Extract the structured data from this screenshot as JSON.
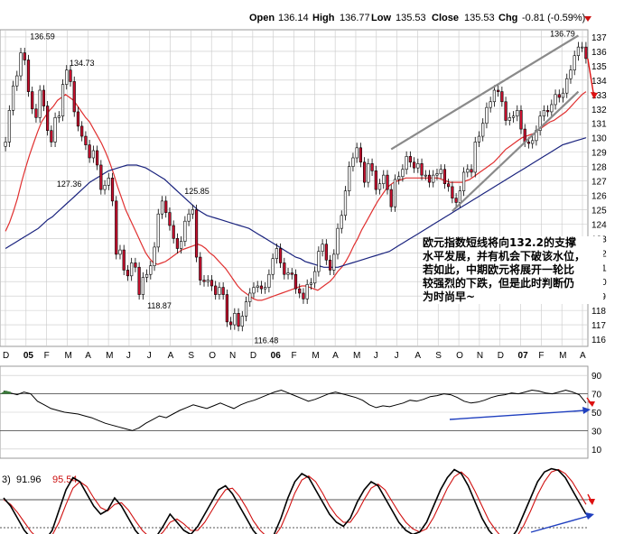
{
  "header": {
    "open_label": "Open",
    "open": "136.14",
    "high_label": "High",
    "high": "136.77",
    "low_label": "Low",
    "low": "135.53",
    "close_label": "Close",
    "close": "135.53",
    "chg_label": "Chg",
    "chg": "-0.81 (-0.59%)"
  },
  "annotation": "欧元指数短线将向132.2的支撑\n水平发展，并有机会下破该水位，\n若如此，中期欧元将展开一轮比\n较强烈的下跌，但是此时判断仍\n为时尚早~",
  "osc_legend": {
    "prefix": "3)",
    "k": "91.96",
    "d": "95.54"
  },
  "colors": {
    "up_candle": "#ffffff",
    "down_candle": "#c8102e",
    "sma_short": "#e03030",
    "sma_long": "#1a237e",
    "trendline": "#8a8a8a",
    "arrow": "#1f3fbf",
    "red_arrow": "#dd1111",
    "grid": "#c8c8c8"
  },
  "chart_data": [
    {
      "type": "candlestick",
      "title": "",
      "x_labels": [
        "D",
        "05",
        "F",
        "M",
        "A",
        "M",
        "J",
        "J",
        "A",
        "S",
        "O",
        "N",
        "D",
        "06",
        "F",
        "M",
        "A",
        "M",
        "J",
        "J",
        "A",
        "S",
        "O",
        "N",
        "D",
        "07",
        "F",
        "M",
        "A"
      ],
      "y_ticks": [
        116,
        117,
        118,
        119,
        120,
        121,
        122,
        123,
        124,
        125,
        126,
        127,
        128,
        129,
        130,
        131,
        132,
        133,
        134,
        135,
        136,
        137
      ],
      "ylim": [
        115.5,
        137.5
      ],
      "price_labels": [
        "136.59",
        "134.73",
        "127.36",
        "125.85",
        "118.87",
        "116.48",
        "136.79"
      ],
      "price_label_values": [
        136.59,
        134.73,
        127.36,
        125.85,
        118.87,
        116.48,
        136.79
      ],
      "price_label_dates": [
        3.2,
        6.6,
        5.5,
        16.5,
        13.3,
        22.5,
        48.0
      ],
      "close": [
        129.7,
        131.9,
        133.6,
        134.3,
        135.9,
        135.4,
        133.2,
        132.0,
        131.4,
        133.3,
        132.2,
        130.5,
        129.7,
        131.4,
        131.5,
        133.7,
        134.7,
        133.9,
        131.8,
        130.8,
        130.1,
        129.5,
        128.6,
        129.1,
        128.1,
        126.4,
        126.7,
        127.2,
        125.6,
        121.9,
        122.2,
        120.8,
        120.4,
        121.3,
        121.0,
        119.1,
        120.3,
        120.5,
        121.1,
        122.4,
        124.7,
        125.6,
        124.8,
        123.9,
        123.0,
        122.3,
        122.8,
        124.2,
        124.7,
        125.0,
        121.7,
        120.1,
        120.0,
        120.1,
        119.7,
        119.1,
        119.6,
        119.1,
        117.2,
        117.0,
        117.8,
        116.9,
        117.6,
        118.6,
        119.2,
        119.6,
        119.7,
        119.5,
        119.6,
        120.5,
        121.6,
        122.3,
        121.3,
        120.5,
        120.6,
        120.5,
        119.5,
        119.2,
        118.8,
        119.8,
        119.9,
        120.7,
        122.1,
        122.6,
        121.5,
        120.8,
        121.9,
        123.7,
        124.6,
        126.3,
        128.0,
        128.6,
        129.3,
        128.3,
        126.9,
        128.2,
        127.7,
        126.4,
        126.8,
        127.4,
        126.4,
        125.2,
        127.1,
        127.3,
        127.8,
        128.7,
        128.3,
        127.9,
        128.2,
        127.4,
        127.4,
        126.9,
        127.4,
        127.5,
        127.8,
        126.8,
        126.6,
        125.8,
        125.5,
        126.3,
        127.6,
        127.8,
        127.6,
        129.7,
        130.1,
        131.0,
        132.1,
        132.5,
        133.3,
        133.2,
        132.5,
        131.2,
        131.4,
        131.5,
        131.9,
        130.6,
        129.7,
        129.6,
        129.8,
        130.5,
        131.5,
        131.9,
        131.8,
        132.3,
        133.0,
        132.8,
        133.1,
        134.1,
        134.7,
        135.7,
        136.3,
        136.3,
        135.5
      ],
      "series": [
        {
          "name": "",
          "role": "sma_short",
          "values": [
            123.5,
            124.1,
            124.9,
            125.8,
            126.9,
            127.9,
            128.8,
            129.6,
            130.4,
            131.1,
            131.5,
            131.9,
            132.2,
            132.6,
            132.8,
            133.0,
            132.8,
            132.6,
            132.2,
            131.8,
            131.4,
            131.1,
            130.6,
            130.1,
            129.6,
            129.0,
            128.3,
            127.5,
            126.6,
            125.8,
            125.0,
            124.4,
            123.8,
            123.2,
            122.6,
            122.0,
            121.6,
            121.3,
            121.2,
            121.3,
            121.4,
            121.6,
            121.8,
            122.0,
            122.2,
            122.3,
            122.4,
            122.5,
            122.6,
            122.5,
            122.3,
            122.0,
            121.8,
            121.5,
            121.2,
            120.9,
            120.5,
            120.1,
            119.7,
            119.4,
            119.2,
            119.0,
            118.8,
            118.7,
            118.7,
            118.8,
            118.9,
            119.0,
            119.1,
            119.2,
            119.3,
            119.4,
            119.5,
            119.6,
            119.7,
            119.7,
            119.6,
            119.5,
            119.4,
            119.6,
            119.8,
            120.0,
            120.3,
            120.7,
            121.0,
            121.4,
            121.9,
            122.5,
            123.0,
            123.6,
            124.1,
            124.6,
            125.1,
            125.6,
            126.0,
            126.4,
            126.7,
            126.9,
            127.0,
            127.1,
            127.2,
            127.2,
            127.2,
            127.2,
            127.2,
            127.2,
            127.2,
            127.2,
            127.2,
            127.1,
            127.0,
            126.9,
            126.9,
            126.9,
            126.9,
            127.0,
            127.1,
            127.3,
            127.5,
            127.7,
            127.9,
            128.1,
            128.3,
            128.6,
            128.9,
            129.2,
            129.4,
            129.6,
            129.8,
            130.0,
            130.1,
            130.2,
            130.3,
            130.5,
            130.7,
            130.9,
            131.1,
            131.2,
            131.4,
            131.6,
            131.8,
            132.1,
            132.4,
            132.7,
            133.0,
            133.2
          ]
        },
        {
          "name": "",
          "role": "sma_long",
          "values": [
            122.3,
            122.5,
            122.7,
            122.9,
            123.1,
            123.3,
            123.5,
            123.7,
            124.0,
            124.3,
            124.5,
            124.8,
            125.1,
            125.4,
            125.7,
            126.0,
            126.3,
            126.6,
            126.9,
            127.1,
            127.3,
            127.5,
            127.7,
            127.8,
            127.9,
            128.0,
            128.1,
            128.1,
            128.1,
            128.0,
            127.9,
            127.7,
            127.5,
            127.3,
            127.1,
            126.8,
            126.5,
            126.2,
            125.9,
            125.6,
            125.3,
            125.0,
            124.8,
            124.6,
            124.5,
            124.4,
            124.3,
            124.2,
            124.1,
            124.0,
            123.9,
            123.8,
            123.7,
            123.5,
            123.3,
            123.1,
            122.9,
            122.7,
            122.5,
            122.3,
            122.1,
            121.9,
            121.7,
            121.6,
            121.4,
            121.3,
            121.2,
            121.1,
            121.0,
            121.0,
            121.0,
            121.0,
            121.1,
            121.2,
            121.3,
            121.4,
            121.5,
            121.6,
            121.7,
            121.8,
            121.9,
            122.0,
            122.1,
            122.3,
            122.5,
            122.7,
            122.9,
            123.1,
            123.3,
            123.5,
            123.7,
            123.9,
            124.1,
            124.3,
            124.5,
            124.7,
            124.9,
            125.1,
            125.3,
            125.5,
            125.7,
            125.9,
            126.1,
            126.3,
            126.5,
            126.7,
            126.9,
            127.1,
            127.3,
            127.5,
            127.7,
            127.9,
            128.1,
            128.3,
            128.5,
            128.7,
            128.9,
            129.1,
            129.3,
            129.5,
            129.6,
            129.7,
            129.8,
            129.9,
            130.0
          ]
        }
      ],
      "trendlines": [
        {
          "from": [
            101,
            129.2
          ],
          "to": [
            150,
            137.1
          ]
        },
        {
          "from": [
            117,
            124.9
          ],
          "to": [
            150,
            133.2
          ]
        }
      ]
    },
    {
      "type": "line",
      "title": "",
      "y_ticks": [
        10,
        30,
        50,
        70,
        90
      ],
      "ylim": [
        0,
        100
      ],
      "series": [
        {
          "name": "",
          "values": [
            73,
            71,
            69,
            72,
            70,
            62,
            58,
            54,
            52,
            50,
            49,
            48,
            46,
            44,
            41,
            38,
            36,
            34,
            32,
            30,
            33,
            38,
            42,
            46,
            44,
            48,
            52,
            55,
            58,
            56,
            54,
            57,
            60,
            57,
            54,
            58,
            61,
            63,
            66,
            69,
            72,
            74,
            71,
            68,
            65,
            62,
            64,
            67,
            70,
            72,
            70,
            68,
            66,
            63,
            58,
            55,
            57,
            56,
            58,
            60,
            63,
            62,
            64,
            67,
            68,
            70,
            69,
            66,
            62,
            60,
            61,
            63,
            66,
            68,
            69,
            71,
            70,
            72,
            74,
            73,
            71,
            70,
            72,
            74,
            72,
            69,
            60
          ]
        }
      ]
    },
    {
      "type": "line",
      "title": "",
      "ylim": [
        0,
        100
      ],
      "series": [
        {
          "name": "",
          "values": [
            60,
            50,
            35,
            20,
            10,
            5,
            8,
            20,
            45,
            70,
            85,
            80,
            65,
            50,
            40,
            45,
            60,
            50,
            35,
            20,
            10,
            8,
            12,
            25,
            40,
            30,
            20,
            15,
            25,
            40,
            55,
            70,
            75,
            65,
            50,
            35,
            20,
            10,
            8,
            15,
            35,
            60,
            80,
            90,
            85,
            70,
            55,
            40,
            30,
            25,
            35,
            55,
            70,
            80,
            75,
            60,
            45,
            30,
            20,
            15,
            18,
            30,
            50,
            70,
            85,
            95,
            90,
            75,
            55,
            35,
            20,
            10,
            5,
            8,
            20,
            40,
            60,
            80,
            92,
            96,
            94,
            85,
            70,
            55,
            40
          ]
        },
        {
          "name": "",
          "values": [
            58,
            52,
            42,
            30,
            18,
            10,
            8,
            14,
            30,
            52,
            72,
            80,
            74,
            60,
            48,
            44,
            52,
            54,
            45,
            32,
            20,
            12,
            10,
            18,
            30,
            34,
            28,
            20,
            20,
            30,
            44,
            58,
            70,
            72,
            62,
            48,
            32,
            20,
            12,
            12,
            24,
            44,
            66,
            82,
            87,
            80,
            66,
            50,
            38,
            30,
            30,
            42,
            58,
            72,
            77,
            70,
            56,
            42,
            30,
            22,
            18,
            22,
            36,
            54,
            72,
            86,
            92,
            84,
            68,
            50,
            32,
            20,
            10,
            8,
            12,
            26,
            44,
            64,
            80,
            92,
            95,
            90,
            80,
            66,
            52
          ]
        }
      ]
    }
  ]
}
